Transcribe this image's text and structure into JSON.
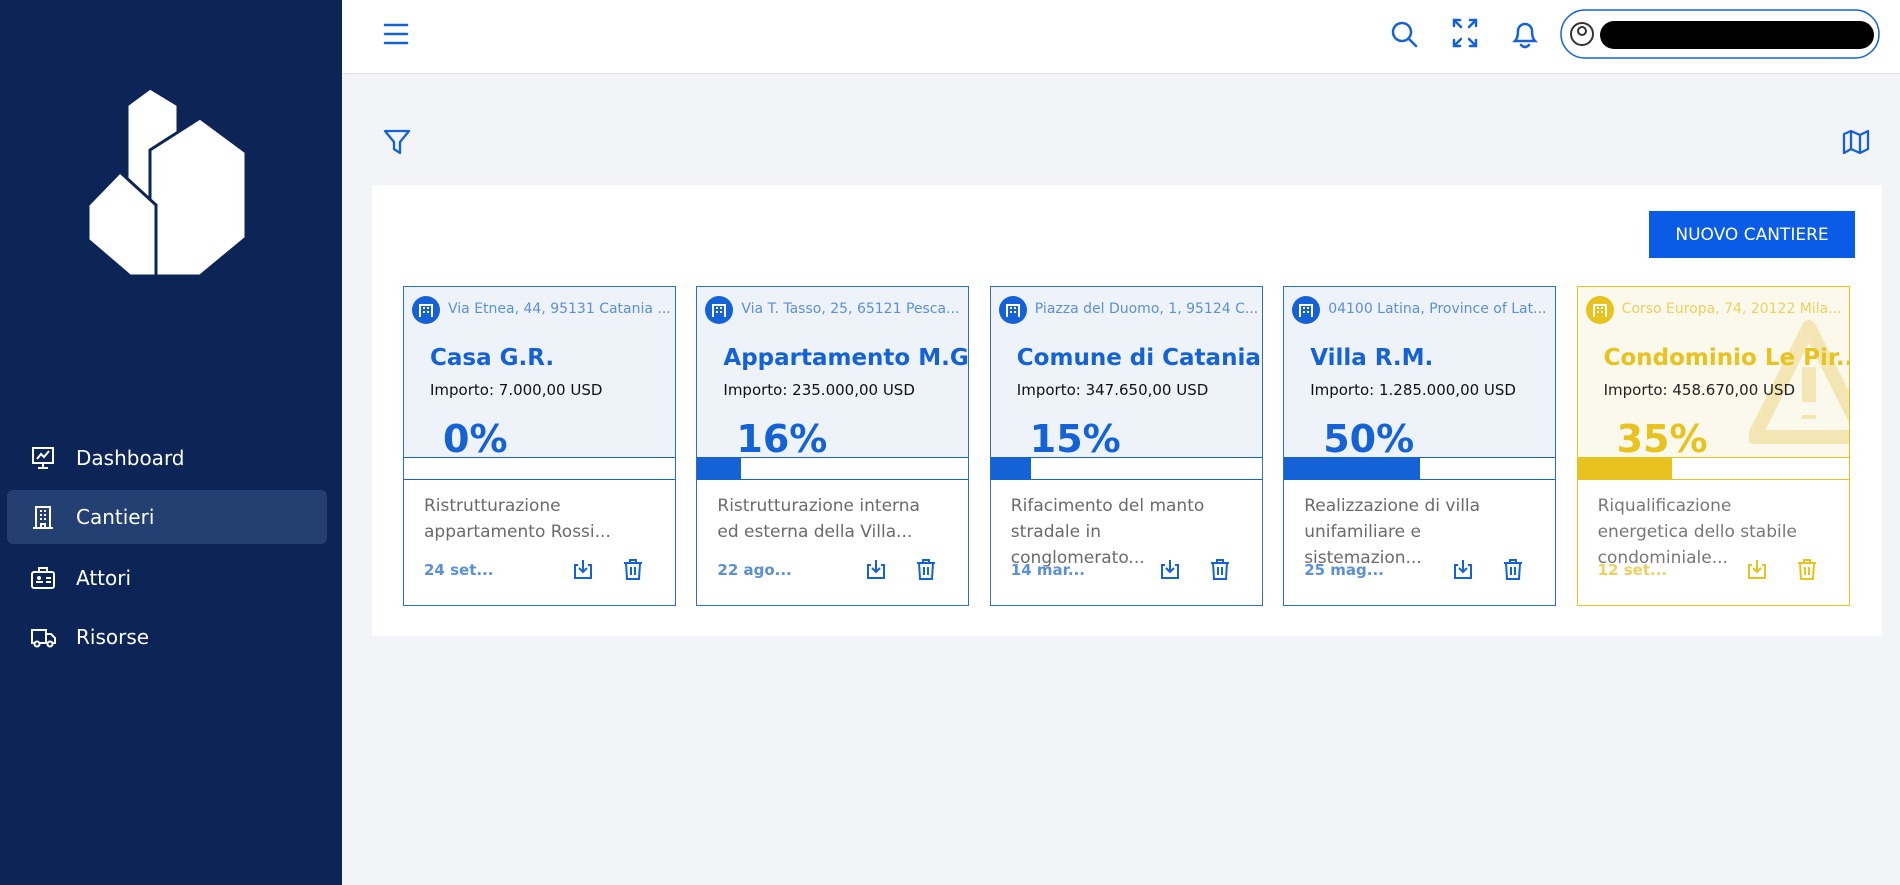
{
  "sidebar": {
    "nav": [
      {
        "label": "Dashboard"
      },
      {
        "label": "Cantieri"
      },
      {
        "label": "Attori"
      },
      {
        "label": "Risorse"
      }
    ],
    "active": 1
  },
  "toolbar": {
    "button": "NUOVO CANTIERE"
  },
  "cards": [
    {
      "address": "Via Etnea, 44, 95131 Catania ...",
      "title": "Casa G.R.",
      "amount": "Importo: 7.000,00 USD",
      "progress": 0,
      "progress_label": "0%",
      "description": "Ristrutturazione appartamento Rossi...",
      "date": "24 set...",
      "warning": false
    },
    {
      "address": "Via T. Tasso, 25, 65121 Pesca...",
      "title": "Appartamento M.G.",
      "amount": "Importo: 235.000,00 USD",
      "progress": 16,
      "progress_label": "16%",
      "description": "Ristrutturazione interna ed esterna della Villa...",
      "date": "22 ago...",
      "warning": false
    },
    {
      "address": "Piazza del Duomo, 1, 95124 C...",
      "title": "Comune di Catania",
      "amount": "Importo: 347.650,00 USD",
      "progress": 15,
      "progress_label": "15%",
      "description": "Rifacimento del manto stradale in conglomerato...",
      "date": "14 mar...",
      "warning": false
    },
    {
      "address": "04100 Latina, Province of Lat...",
      "title": "Villa R.M.",
      "amount": "Importo: 1.285.000,00 USD",
      "progress": 50,
      "progress_label": "50%",
      "description": "Realizzazione di villa unifamiliare e sistemazion...",
      "date": "25 mag...",
      "warning": false
    },
    {
      "address": "Corso Europa, 74, 20122 Mila...",
      "title": "Condominio Le Pir...",
      "amount": "Importo: 458.670,00 USD",
      "progress": 35,
      "progress_label": "35%",
      "description": "Riqualificazione energetica dello stabile condominiale...",
      "date": "12 set...",
      "warning": true
    }
  ]
}
